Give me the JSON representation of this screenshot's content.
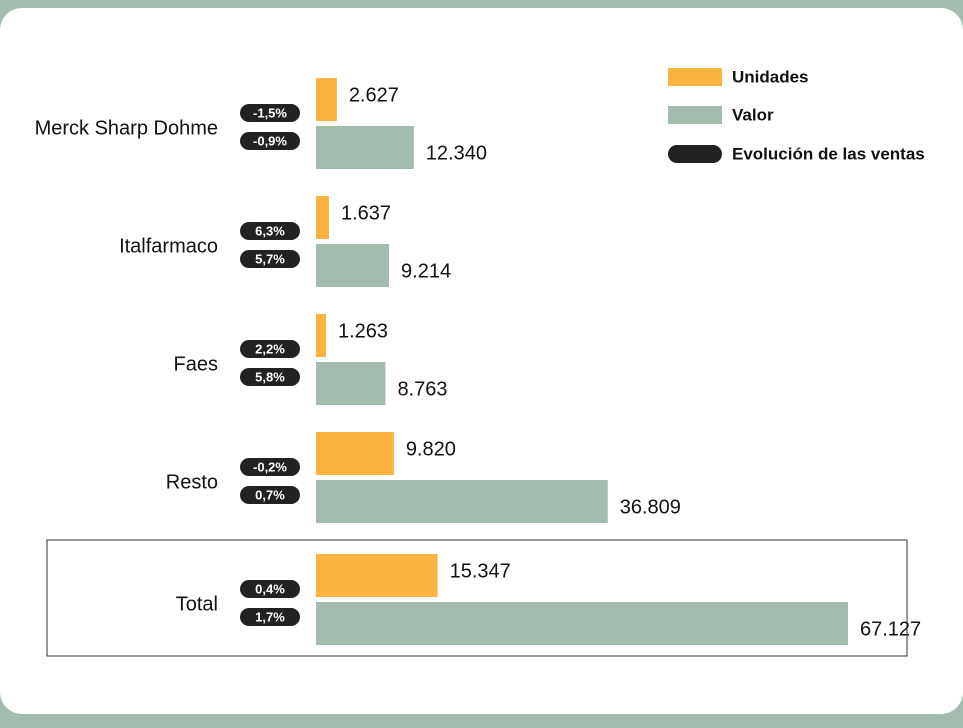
{
  "chart_data": {
    "type": "bar",
    "orientation": "horizontal",
    "categories": [
      "Merck Sharp Dohme",
      "Italfarmaco",
      "Faes",
      "Resto",
      "Total"
    ],
    "series": [
      {
        "name": "Unidades",
        "color": "#fbb33f",
        "values": [
          2627,
          1637,
          1263,
          9820,
          15347
        ],
        "value_labels": [
          "2.627",
          "1.637",
          "1.263",
          "9.820",
          "15.347"
        ],
        "change_labels": [
          "-1,5%",
          "6,3%",
          "2,2%",
          "-0,2%",
          "0,4%"
        ]
      },
      {
        "name": "Valor",
        "color": "#a3bcae",
        "values": [
          12340,
          9214,
          8763,
          36809,
          67127
        ],
        "value_labels": [
          "12.340",
          "9.214",
          "8.763",
          "36.809",
          "67.127"
        ],
        "change_labels": [
          "-0,9%",
          "5,7%",
          "5,8%",
          "0,7%",
          "1,7%"
        ]
      }
    ],
    "change_legend": "Evolución de las ventas",
    "legend": "top-right"
  }
}
